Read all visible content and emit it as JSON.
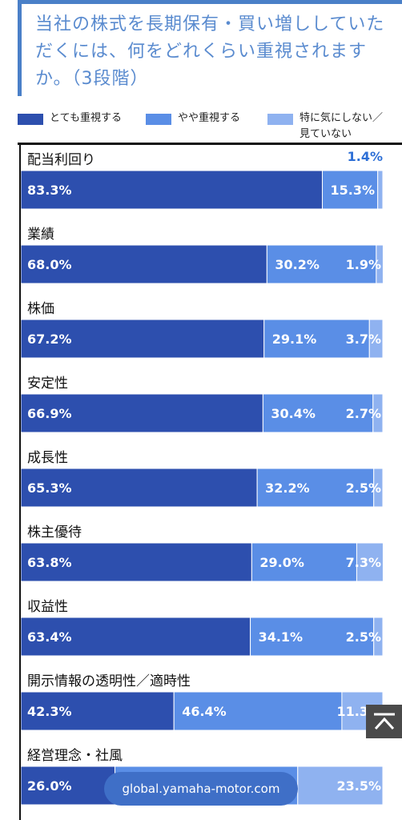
{
  "title": "当社の株式を長期保有・買い増ししていただくには、何をどれくらい重視されますか。（3段階）",
  "legend": [
    {
      "label": "とても重視する",
      "color": "#2d4fae"
    },
    {
      "label": "やや重視する",
      "color": "#5a8ee6"
    },
    {
      "label": "特に気にしない／見ていない",
      "color": "#8fb2f0"
    }
  ],
  "url_badge": "global.yamaha-motor.com",
  "scroll_top_icon": "chevron-up-icon",
  "chart_data": {
    "type": "bar",
    "orientation": "horizontal-stacked",
    "title": "当社の株式を長期保有・買い増ししていただくには、何をどれくらい重視されますか。（3段階）",
    "categories": [
      "配当利回り",
      "業績",
      "株価",
      "安定性",
      "成長性",
      "株主優待",
      "収益性",
      "開示情報の透明性／適時性",
      "経営理念・社風"
    ],
    "series": [
      {
        "name": "とても重視する",
        "color": "#2d4fae",
        "values": [
          83.3,
          68.0,
          67.2,
          66.9,
          65.3,
          63.8,
          63.4,
          42.3,
          26.0
        ]
      },
      {
        "name": "やや重視する",
        "color": "#5a8ee6",
        "values": [
          15.3,
          30.2,
          29.1,
          30.4,
          32.2,
          29.0,
          34.1,
          46.4,
          50.5
        ]
      },
      {
        "name": "特に気にしない／見ていない",
        "color": "#8fb2f0",
        "values": [
          1.4,
          1.9,
          3.7,
          2.7,
          2.5,
          7.3,
          2.5,
          11.3,
          23.5
        ]
      }
    ],
    "labels": [
      [
        "83.3%",
        "15.3%",
        "1.4%"
      ],
      [
        "68.0%",
        "30.2%",
        "1.9%"
      ],
      [
        "67.2%",
        "29.1%",
        "3.7%"
      ],
      [
        "66.9%",
        "30.4%",
        "2.7%"
      ],
      [
        "65.3%",
        "32.2%",
        "2.5%"
      ],
      [
        "63.8%",
        "29.0%",
        "7.3%"
      ],
      [
        "63.4%",
        "34.1%",
        "2.5%"
      ],
      [
        "42.3%",
        "46.4%",
        "11.3%"
      ],
      [
        "26.0%",
        "",
        "23.5%"
      ]
    ],
    "ylim": [
      0,
      100
    ],
    "legend_position": "top"
  }
}
